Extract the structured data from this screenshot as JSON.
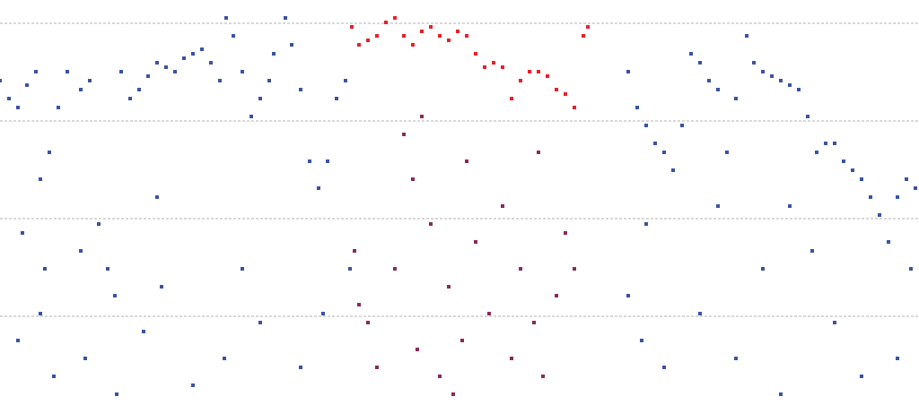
{
  "chart_data": {
    "type": "scatter",
    "xlim": [
      0,
      1024
    ],
    "ylim": [
      0,
      452
    ],
    "yticks": [
      99,
      208,
      317,
      426
    ],
    "grid": true,
    "series": [
      {
        "color": "#3a53a4",
        "x": [
          0,
          10,
          20,
          30,
          40,
          45,
          50,
          55,
          65,
          75,
          90,
          100,
          110,
          120,
          128,
          135,
          145,
          155,
          165,
          175,
          185,
          195,
          205,
          215,
          225,
          235,
          245,
          252,
          260,
          270,
          280,
          290,
          300,
          305,
          318,
          325,
          335,
          345,
          355,
          365,
          375,
          385,
          700,
          710,
          720,
          730,
          740,
          750,
          760,
          770,
          780,
          790,
          800,
          810,
          820,
          832,
          840,
          850,
          860,
          870,
          880,
          890,
          900,
          910,
          920,
          930,
          940,
          950,
          960,
          970,
          980,
          990,
          1000,
          1010,
          1020,
          20,
          45,
          60,
          95,
          130,
          160,
          180,
          215,
          250,
          290,
          335,
          360,
          700,
          715,
          740,
          780,
          820,
          850,
          870,
          905,
          930,
          960,
          1000,
          25,
          90,
          175,
          270,
          390,
          720,
          800,
          880,
          1015
        ],
        "values": [
          362,
          342,
          332,
          357,
          372,
          252,
          152,
          282,
          332,
          372,
          352,
          362,
          202,
          152,
          122,
          372,
          342,
          352,
          367,
          382,
          377,
          372,
          387,
          392,
          397,
          382,
          362,
          432,
          412,
          372,
          322,
          342,
          362,
          392,
          432,
          402,
          352,
          272,
          242,
          272,
          342,
          362,
          372,
          332,
          312,
          292,
          282,
          262,
          312,
          392,
          382,
          362,
          352,
          282,
          342,
          412,
          382,
          372,
          367,
          362,
          357,
          352,
          322,
          282,
          292,
          292,
          272,
          262,
          252,
          232,
          212,
          182,
          232,
          252,
          242,
          72,
          102,
          32,
          52,
          12,
          82,
          132,
          22,
          52,
          92,
          42,
          102,
          122,
          72,
          42,
          102,
          52,
          152,
          12,
          172,
          92,
          32,
          52,
          192,
          172,
          232,
          152,
          152,
          202,
          222,
          222,
          152
        ]
      },
      {
        "color": "#e8202a",
        "x": [
          392,
          400,
          410,
          420,
          430,
          440,
          450,
          460,
          470,
          480,
          490,
          500,
          510,
          520,
          530,
          540,
          550,
          560,
          570,
          580,
          590,
          600,
          610,
          620,
          630,
          640,
          650,
          655
        ],
        "values": [
          422,
          402,
          407,
          412,
          427,
          432,
          412,
          402,
          417,
          422,
          412,
          407,
          417,
          412,
          392,
          377,
          382,
          377,
          342,
          362,
          372,
          372,
          367,
          352,
          347,
          332,
          412,
          422
        ]
      },
      {
        "color": "#8b2a5a",
        "x": [
          395,
          400,
          410,
          420,
          440,
          460,
          465,
          480,
          490,
          500,
          505,
          515,
          530,
          545,
          560,
          570,
          580,
          595,
          605,
          620,
          630,
          640,
          450,
          520,
          600,
          470
        ],
        "values": [
          172,
          112,
          92,
          42,
          152,
          252,
          62,
          202,
          32,
          132,
          12,
          72,
          182,
          102,
          222,
          52,
          152,
          92,
          32,
          122,
          192,
          152,
          302,
          272,
          282,
          322
        ]
      }
    ]
  }
}
